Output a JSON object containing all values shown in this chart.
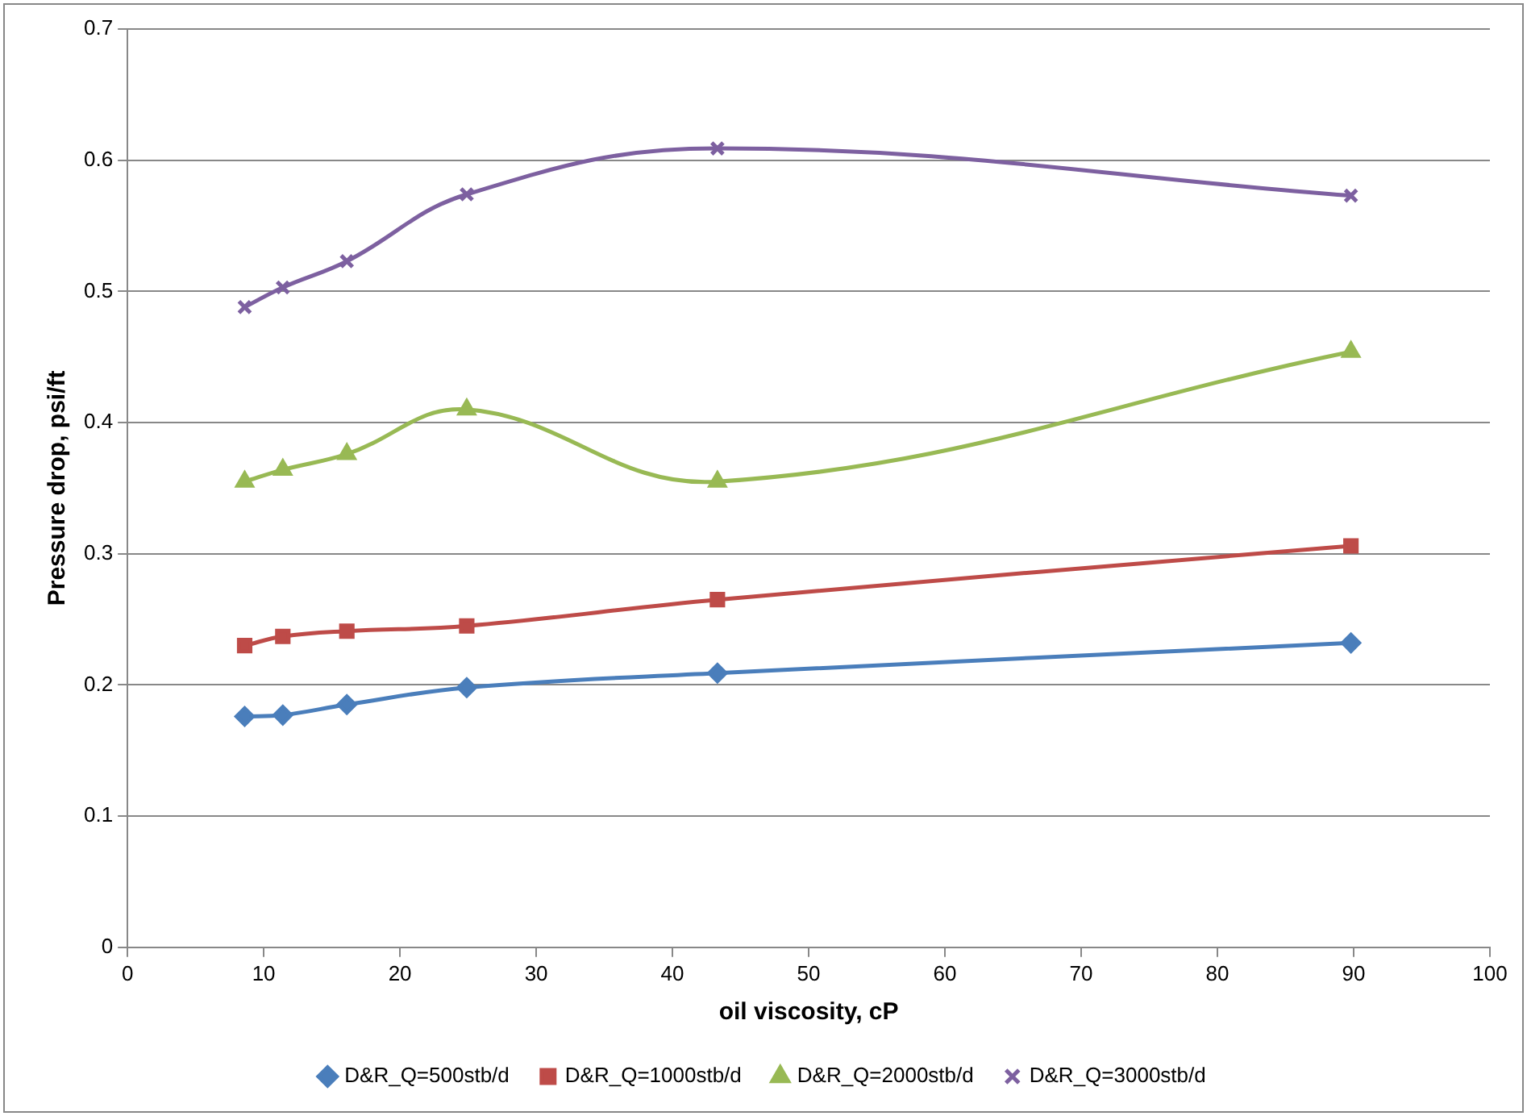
{
  "chart_data": {
    "type": "line",
    "xlabel": "oil viscosity, cP",
    "ylabel": "Pressure drop, psi/ft",
    "x": [
      8.6,
      11.4,
      16.1,
      24.9,
      43.3,
      89.8
    ],
    "series": [
      {
        "name": "D&R_Q=500stb/d",
        "color": "#4a7ebb",
        "marker": "diamond",
        "values": [
          0.176,
          0.177,
          0.185,
          0.198,
          0.209,
          0.232
        ]
      },
      {
        "name": "D&R_Q=1000stb/d",
        "color": "#be4b48",
        "marker": "square",
        "values": [
          0.23,
          0.237,
          0.241,
          0.245,
          0.265,
          0.306
        ]
      },
      {
        "name": "D&R_Q=2000stb/d",
        "color": "#98b954",
        "marker": "triangle",
        "values": [
          0.355,
          0.364,
          0.376,
          0.41,
          0.355,
          0.454
        ]
      },
      {
        "name": "D&R_Q=3000stb/d",
        "color": "#7d60a0",
        "marker": "cross",
        "values": [
          0.488,
          0.503,
          0.523,
          0.574,
          0.609,
          0.573
        ]
      }
    ],
    "xlim": [
      0,
      100
    ],
    "xticks": [
      0,
      10,
      20,
      30,
      40,
      50,
      60,
      70,
      80,
      90,
      100
    ],
    "ylim": [
      0,
      0.7
    ],
    "yticks": [
      0,
      0.1,
      0.2,
      0.3,
      0.4,
      0.5,
      0.6,
      0.7
    ],
    "grid": "y",
    "legend": "bottom",
    "line_style": "solid"
  }
}
